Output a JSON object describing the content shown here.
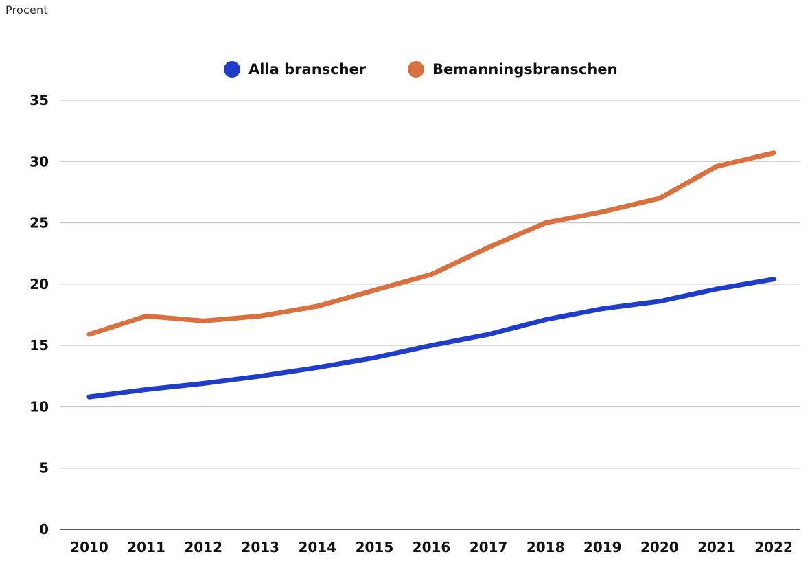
{
  "chart_data": {
    "type": "line",
    "title": "",
    "ylabel": "Procent",
    "xlabel": "",
    "ylim": [
      0,
      35
    ],
    "yticks": [
      0,
      5,
      10,
      15,
      20,
      25,
      30,
      35
    ],
    "grid": true,
    "legend_position": "top-center",
    "categories": [
      "2010",
      "2011",
      "2012",
      "2013",
      "2014",
      "2015",
      "2016",
      "2017",
      "2018",
      "2019",
      "2020",
      "2021",
      "2022"
    ],
    "series": [
      {
        "name": "Alla branscher",
        "color": "#1f3dc7",
        "values": [
          10.8,
          11.4,
          11.9,
          12.5,
          13.2,
          14.0,
          15.0,
          15.9,
          17.1,
          18.0,
          18.6,
          19.6,
          20.4
        ]
      },
      {
        "name": "Bemanningsbranschen",
        "color": "#d9703f",
        "values": [
          15.9,
          17.4,
          17.0,
          17.4,
          18.2,
          19.5,
          20.8,
          23.0,
          25.0,
          25.9,
          27.0,
          29.6,
          30.7
        ]
      }
    ]
  }
}
